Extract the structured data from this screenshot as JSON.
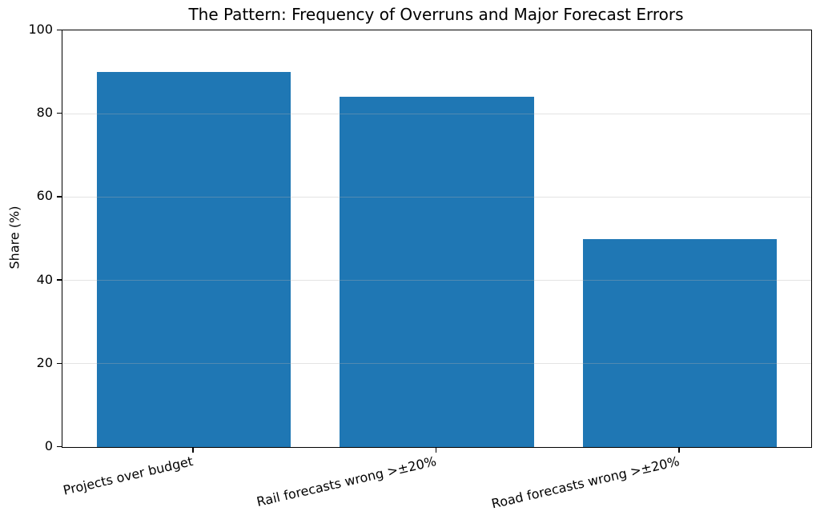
{
  "chart_data": {
    "type": "bar",
    "title": "The Pattern: Frequency of Overruns and Major Forecast Errors",
    "categories": [
      "Projects over budget",
      "Rail forecasts wrong >±20%",
      "Road forecasts wrong >±20%"
    ],
    "values": [
      90,
      84,
      50
    ],
    "xlabel": "",
    "ylabel": "Share (%)",
    "ylim": [
      0,
      100
    ],
    "yticks": [
      0,
      20,
      40,
      60,
      80,
      100
    ],
    "bar_color": "#1f77b4",
    "axis_color": "#000000",
    "grid": "horizontal",
    "grid_color": "rgba(176,176,176,0.35)",
    "legend": "none",
    "x_tick_label_rotation_deg": 13
  }
}
